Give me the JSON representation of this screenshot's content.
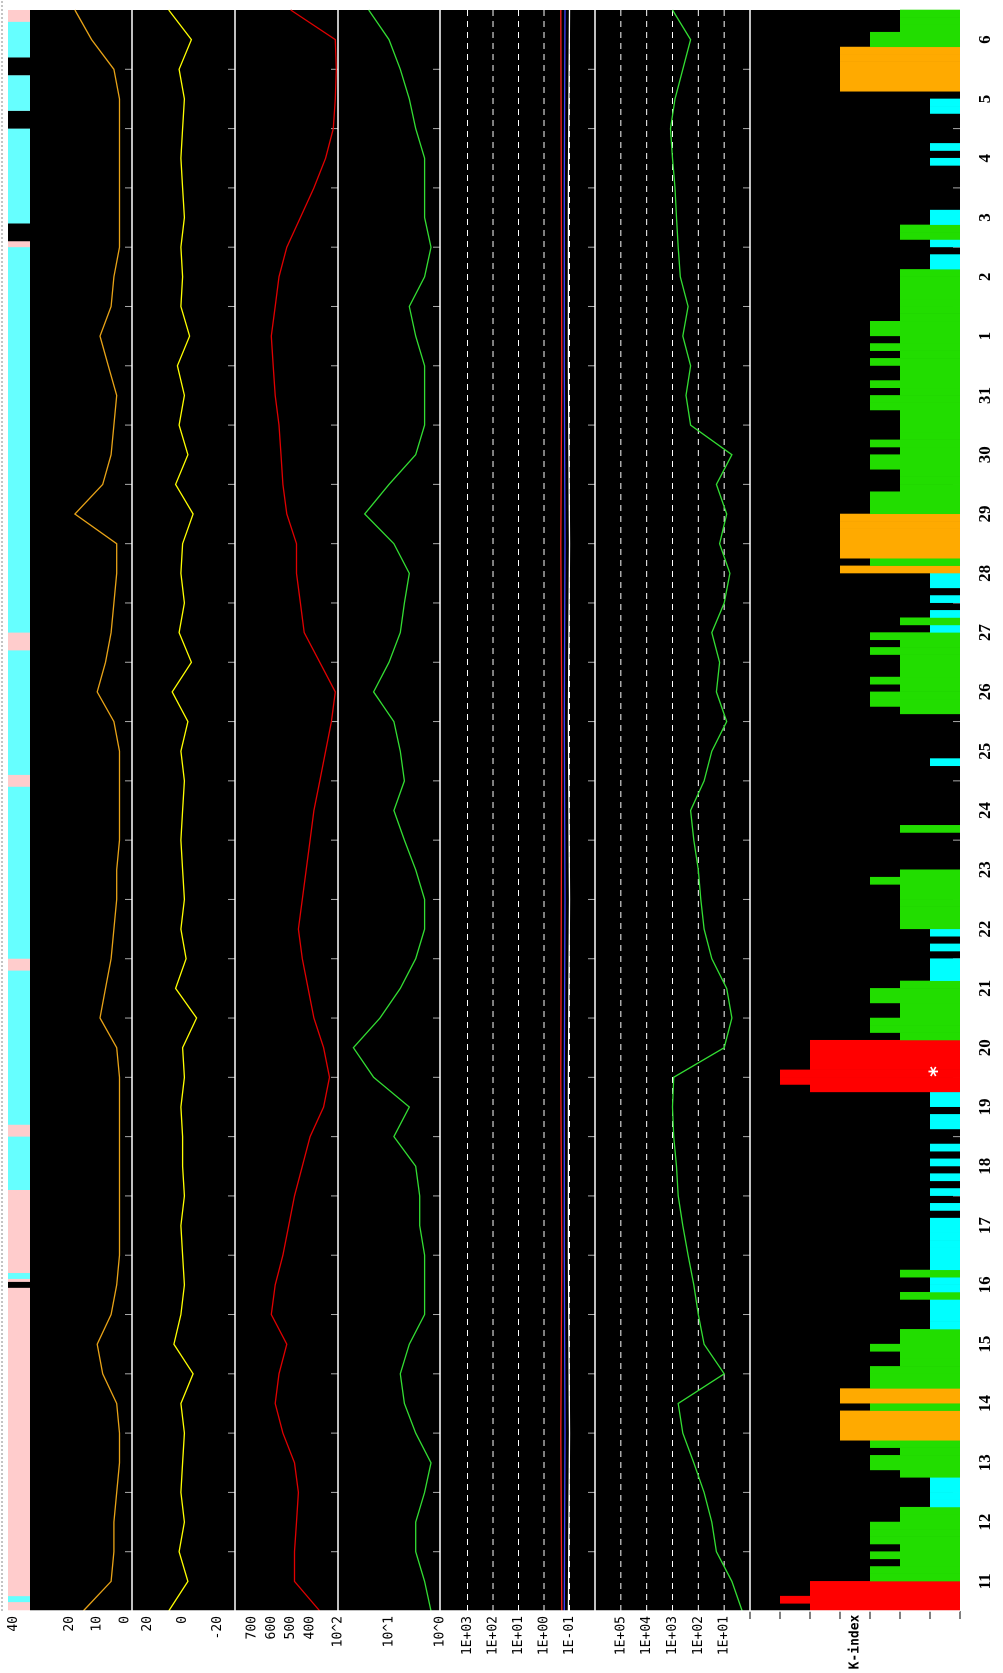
{
  "chart_data": [
    {
      "type": "strip",
      "xlim": [
        0,
        27
      ],
      "segments": [
        {
          "start": 0,
          "end": 27,
          "color": "#ffcccc"
        },
        {
          "start": 0.15,
          "end": 0.25,
          "color": "#66ffff"
        },
        {
          "start": 5.45,
          "end": 5.55,
          "color": "#000000"
        },
        {
          "start": 5.6,
          "end": 5.7,
          "color": "#66ffff"
        },
        {
          "start": 7.1,
          "end": 8.0,
          "color": "#66ffff"
        },
        {
          "start": 8.2,
          "end": 10.8,
          "color": "#66ffff"
        },
        {
          "start": 11.0,
          "end": 13.9,
          "color": "#66ffff"
        },
        {
          "start": 14.1,
          "end": 16.2,
          "color": "#66ffff"
        },
        {
          "start": 16.5,
          "end": 23.0,
          "color": "#66ffff"
        },
        {
          "start": 23.1,
          "end": 23.4,
          "color": "#000000"
        },
        {
          "start": 23.4,
          "end": 25.0,
          "color": "#66ffff"
        },
        {
          "start": 25.0,
          "end": 25.3,
          "color": "#000000"
        },
        {
          "start": 25.3,
          "end": 25.9,
          "color": "#66ffff"
        },
        {
          "start": 25.9,
          "end": 26.2,
          "color": "#000000"
        },
        {
          "start": 26.2,
          "end": 26.8,
          "color": "#66ffff"
        }
      ]
    },
    {
      "type": "line",
      "xlim": [
        0,
        27
      ],
      "ylim": [
        -2.5,
        42
      ],
      "yticks": [
        40,
        20,
        10,
        0
      ],
      "x": [
        0,
        0.5,
        1,
        1.5,
        2,
        2.5,
        3,
        3.5,
        4,
        4.5,
        5,
        5.5,
        6,
        6.5,
        7,
        7.5,
        8,
        8.5,
        9,
        9.5,
        10,
        10.5,
        11,
        11.5,
        12,
        12.5,
        13,
        13.5,
        14,
        14.5,
        15,
        15.5,
        16,
        16.5,
        17,
        17.5,
        18,
        18.5,
        19,
        19.5,
        20,
        20.5,
        21,
        21.5,
        22,
        22.5,
        23,
        23.5,
        24,
        24.5,
        25,
        25.5,
        26,
        26.5,
        27
      ],
      "series": [
        {
          "color": "#e8a317",
          "values": [
            15,
            5,
            4,
            4,
            3,
            2,
            2,
            3,
            8,
            10,
            5,
            3,
            2,
            2,
            2,
            2,
            2,
            2,
            2,
            3,
            9,
            7,
            5,
            4,
            3,
            3,
            2,
            2,
            2,
            2,
            4,
            10,
            7,
            5,
            4,
            3,
            3,
            18,
            8,
            5,
            4,
            3,
            6,
            9,
            5,
            4,
            2,
            2,
            2,
            2,
            2,
            2,
            4,
            12,
            18
          ]
        }
      ]
    },
    {
      "type": "line",
      "xlim": [
        0,
        27
      ],
      "ylim": [
        -30,
        29
      ],
      "yticks": [
        20,
        0,
        -20
      ],
      "x": [
        0,
        0.5,
        1,
        1.5,
        2,
        2.5,
        3,
        3.5,
        4,
        4.5,
        5,
        5.5,
        6,
        6.5,
        7,
        7.5,
        8,
        8.5,
        9,
        9.5,
        10,
        10.5,
        11,
        11.5,
        12,
        12.5,
        13,
        13.5,
        14,
        14.5,
        15,
        15.5,
        16,
        16.5,
        17,
        17.5,
        18,
        18.5,
        19,
        19.5,
        20,
        20.5,
        21,
        21.5,
        22,
        22.5,
        23,
        23.5,
        24,
        24.5,
        25,
        25.5,
        26,
        26.5,
        27
      ],
      "series": [
        {
          "color": "#ffff00",
          "values": [
            8,
            -3,
            2,
            -1,
            1,
            0,
            -1,
            1,
            -6,
            5,
            1,
            -1,
            0,
            1,
            -1,
            0,
            0,
            1,
            -1,
            0,
            -8,
            4,
            -2,
            1,
            -1,
            0,
            1,
            0,
            -1,
            1,
            -3,
            6,
            -5,
            2,
            -1,
            1,
            0,
            -6,
            4,
            -3,
            2,
            -1,
            3,
            -4,
            1,
            0,
            1,
            -1,
            0,
            1,
            0,
            -1,
            2,
            -5,
            8
          ]
        }
      ]
    },
    {
      "type": "line",
      "xlim": [
        0,
        27
      ],
      "ylim": [
        256,
        787
      ],
      "yticks": [
        700,
        600,
        500,
        400
      ],
      "x": [
        0,
        0.5,
        1,
        1.5,
        2,
        2.5,
        3,
        3.5,
        4,
        4.5,
        5,
        5.5,
        6,
        6.5,
        7,
        7.5,
        8,
        8.5,
        9,
        9.5,
        10,
        10.5,
        11,
        11.5,
        12,
        12.5,
        13,
        13.5,
        14,
        14.5,
        15,
        15.5,
        16,
        16.5,
        17,
        17.5,
        18,
        18.5,
        19,
        19.5,
        20,
        20.5,
        21,
        21.5,
        22,
        22.5,
        23,
        23.5,
        24,
        24.5,
        25,
        25.5,
        26,
        26.5,
        27
      ],
      "series": [
        {
          "color": "#e00000",
          "values": [
            350,
            480,
            480,
            470,
            460,
            480,
            540,
            580,
            560,
            520,
            600,
            580,
            540,
            510,
            480,
            440,
            400,
            330,
            300,
            330,
            380,
            410,
            440,
            460,
            440,
            420,
            400,
            380,
            350,
            320,
            290,
            270,
            350,
            430,
            450,
            470,
            470,
            520,
            540,
            550,
            560,
            580,
            590,
            600,
            580,
            560,
            520,
            450,
            380,
            320,
            280,
            270,
            265,
            270,
            500
          ]
        }
      ]
    },
    {
      "type": "line",
      "log": true,
      "xlim": [
        0,
        27
      ],
      "ylim": [
        1,
        100
      ],
      "yticks": [
        {
          "value": 100,
          "label": "10^2"
        },
        {
          "value": 10,
          "label": "10^1"
        },
        {
          "value": 1,
          "label": "10^0"
        }
      ],
      "x": [
        0,
        0.5,
        1,
        1.5,
        2,
        2.5,
        3,
        3.5,
        4,
        4.5,
        5,
        5.5,
        6,
        6.5,
        7,
        7.5,
        8,
        8.5,
        9,
        9.5,
        10,
        10.5,
        11,
        11.5,
        12,
        12.5,
        13,
        13.5,
        14,
        14.5,
        15,
        15.5,
        16,
        16.5,
        17,
        17.5,
        18,
        18.5,
        19,
        19.5,
        20,
        20.5,
        21,
        21.5,
        22,
        22.5,
        23,
        23.5,
        24,
        24.5,
        25,
        25.5,
        26,
        26.5,
        27
      ],
      "series": [
        {
          "color": "#33dd33",
          "values": [
            1.5,
            2,
            3,
            3,
            2,
            1.5,
            3,
            5,
            6,
            4,
            2,
            2,
            2,
            2.5,
            2.5,
            3,
            8,
            4,
            20,
            50,
            15,
            6,
            3,
            2,
            2,
            3,
            5,
            8,
            5,
            6,
            8,
            20,
            10,
            6,
            5,
            4,
            8,
            30,
            10,
            3,
            2,
            2,
            2,
            3,
            4,
            2,
            1.5,
            2,
            2,
            2,
            3,
            4,
            6,
            10,
            25
          ]
        }
      ]
    },
    {
      "type": "line",
      "log": true,
      "grid": true,
      "xlim": [
        0,
        27
      ],
      "ylim": [
        0.01,
        12000
      ],
      "yticks": [
        {
          "value": 1000,
          "label": "1E+03"
        },
        {
          "value": 100,
          "label": "1E+02"
        },
        {
          "value": 10,
          "label": "1E+01"
        },
        {
          "value": 1,
          "label": "1E+00"
        },
        {
          "value": 0.1,
          "label": "1E-01"
        }
      ],
      "x": [
        0,
        3,
        6,
        9,
        12,
        15,
        18,
        21,
        24,
        27
      ],
      "series": [
        {
          "color": "#ff2020",
          "values": [
            0.2,
            0.22,
            0.2,
            0.22,
            0.21,
            0.2,
            0.22,
            0.2,
            0.21,
            0.22
          ]
        },
        {
          "color": "#4040ff",
          "values": [
            0.16,
            0.15,
            0.16,
            0.16,
            0.15,
            0.16,
            0.15,
            0.16,
            0.16,
            0.15
          ]
        },
        {
          "color": "#ffffff",
          "values": [
            0.11,
            0.1,
            0.11,
            0.11,
            0.1,
            0.11,
            0.1,
            0.11,
            0.11,
            0.1
          ]
        }
      ]
    },
    {
      "type": "line",
      "log": true,
      "grid": true,
      "xlim": [
        0,
        27
      ],
      "ylim": [
        1,
        1000000
      ],
      "yticks": [
        {
          "value": 100000,
          "label": "1E+05"
        },
        {
          "value": 10000,
          "label": "1E+04"
        },
        {
          "value": 1000,
          "label": "1E+03"
        },
        {
          "value": 100,
          "label": "1E+02"
        },
        {
          "value": 10,
          "label": "1E+01"
        }
      ],
      "x": [
        0,
        0.5,
        1,
        1.5,
        2,
        2.5,
        3,
        3.5,
        4,
        4.5,
        5,
        5.5,
        6,
        6.5,
        7,
        7.5,
        8,
        8.5,
        9,
        9.5,
        10,
        10.5,
        11,
        11.5,
        12,
        12.5,
        13,
        13.5,
        14,
        14.5,
        15,
        15.5,
        16,
        16.5,
        17,
        17.5,
        18,
        18.5,
        19,
        19.5,
        20,
        20.5,
        21,
        21.5,
        22,
        22.5,
        23,
        23.5,
        24,
        24.5,
        25,
        25.5,
        26,
        26.5,
        27
      ],
      "series": [
        {
          "color": "#33dd33",
          "values": [
            2,
            5,
            20,
            30,
            60,
            150,
            400,
            600,
            10,
            60,
            100,
            150,
            250,
            400,
            600,
            700,
            900,
            1000,
            900,
            10,
            5,
            8,
            30,
            60,
            80,
            100,
            150,
            200,
            60,
            30,
            8,
            20,
            15,
            30,
            10,
            6,
            15,
            8,
            20,
            5,
            200,
            300,
            200,
            400,
            250,
            500,
            600,
            700,
            800,
            1000,
            1200,
            800,
            400,
            200,
            1000
          ]
        }
      ]
    },
    {
      "type": "bar",
      "ylabel": "K-index",
      "annotation": "*",
      "xlim": [
        0,
        27
      ],
      "ylim": [
        0,
        7
      ],
      "yticks": [
        0,
        1,
        2,
        3,
        4,
        5,
        6,
        7
      ],
      "color_scale": [
        {
          "max": 1,
          "color": "#00ffff"
        },
        {
          "max": 3,
          "color": "#22dd00"
        },
        {
          "max": 4,
          "color": "#ffaa00"
        },
        {
          "max": 9,
          "color": "#ff0000"
        }
      ],
      "categories": [
        "11",
        "12",
        "13",
        "14",
        "15",
        "16",
        "17",
        "18",
        "19",
        "20",
        "21",
        "22",
        "23",
        "24",
        "25",
        "26",
        "27",
        "28",
        "29",
        "30",
        "31",
        "1",
        "2",
        "3",
        "4",
        "5",
        "6"
      ],
      "values": [
        [
          5,
          6,
          5,
          5,
          3,
          3,
          2,
          3
        ],
        [
          2,
          3,
          3,
          3,
          2,
          2,
          1,
          1
        ],
        [
          1,
          1,
          2,
          3,
          3,
          2,
          3,
          4
        ],
        [
          4,
          4,
          4,
          3,
          4,
          4,
          3,
          3
        ],
        [
          3,
          2,
          2,
          3,
          2,
          2,
          1,
          1
        ],
        [
          1,
          1,
          2,
          1,
          1,
          2,
          1,
          1
        ],
        [
          1,
          1,
          1,
          1,
          1,
          0,
          1,
          0
        ],
        [
          1,
          0,
          1,
          0,
          1,
          0,
          1,
          0
        ],
        [
          0,
          1,
          1,
          0,
          1,
          1,
          5,
          6
        ],
        [
          6,
          5,
          5,
          5,
          5,
          2,
          3,
          3
        ],
        [
          2,
          2,
          3,
          3,
          2,
          1,
          1,
          1
        ],
        [
          0,
          1,
          0,
          1,
          2,
          2,
          2,
          2
        ],
        [
          2,
          2,
          3,
          2,
          0,
          0,
          0,
          0
        ],
        [
          0,
          2,
          0,
          0,
          0,
          0,
          0,
          0
        ],
        [
          0,
          0,
          1,
          0,
          0,
          0,
          0,
          0
        ],
        [
          0,
          2,
          3,
          3,
          2,
          3,
          2,
          2
        ],
        [
          2,
          3,
          2,
          3,
          1,
          2,
          1,
          0
        ],
        [
          1,
          0,
          1,
          1,
          4,
          3,
          4,
          4
        ],
        [
          4,
          4,
          4,
          4,
          3,
          3,
          3,
          2
        ],
        [
          2,
          2,
          3,
          3,
          2,
          3,
          2,
          2
        ],
        [
          2,
          2,
          3,
          3,
          2,
          3,
          2,
          2
        ],
        [
          3,
          2,
          3,
          2,
          3,
          3,
          2,
          2
        ],
        [
          2,
          2,
          2,
          2,
          2,
          1,
          1,
          0
        ],
        [
          1,
          2,
          2,
          1,
          1,
          0,
          0,
          0
        ],
        [
          0,
          0,
          0,
          1,
          0,
          1,
          0,
          0
        ],
        [
          0,
          0,
          1,
          1,
          0,
          4,
          4,
          4
        ],
        [
          4,
          4,
          4,
          3,
          3,
          2,
          2,
          2
        ]
      ]
    }
  ]
}
